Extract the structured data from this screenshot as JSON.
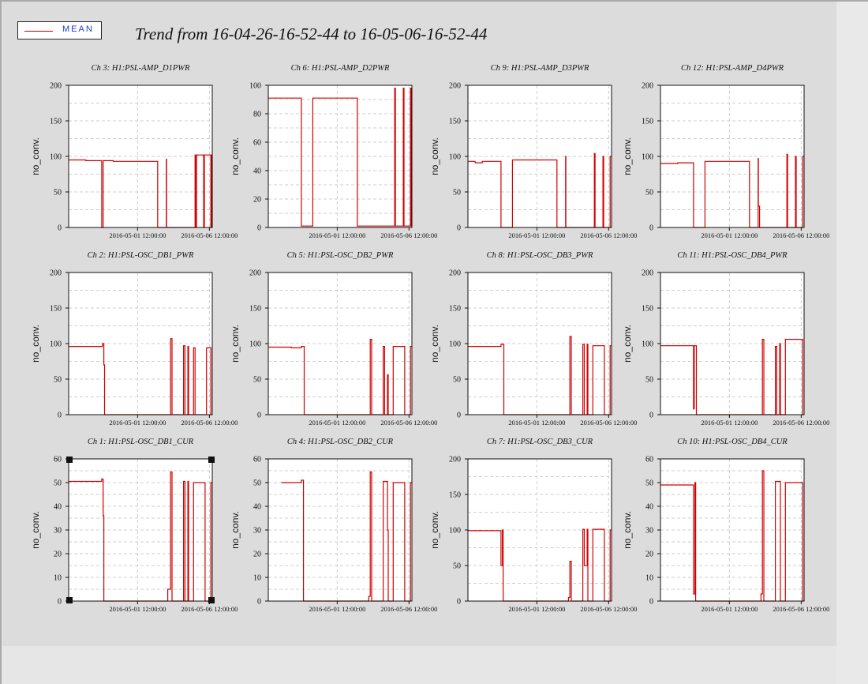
{
  "legend": {
    "label": "MEAN",
    "color": "#d10000"
  },
  "title": "Trend from 16-04-26-16-52-44 to 16-05-06-16-52-44",
  "chart_data": [
    {
      "type": "line",
      "title": "Ch 3: H1:PSL-AMP_D1PWR",
      "ylabel": "no_conv.",
      "ylim": [
        0,
        200
      ],
      "yticks": [
        0,
        50,
        100,
        150,
        200
      ],
      "xlim": [
        0,
        10
      ],
      "xticks": [
        {
          "x": 4.8,
          "label": "2016-05-01 12:00:00"
        },
        {
          "x": 9.8,
          "label": "2016-05-06 12:00:00"
        }
      ],
      "series": [
        {
          "x": [
            0,
            1.2,
            1.2,
            2.3,
            2.3,
            2.4,
            2.4,
            3.1,
            3.1,
            6.2,
            6.2,
            6.8,
            6.8,
            6.82,
            6.82,
            8.8,
            8.8,
            8.85,
            8.85,
            8.9,
            8.9,
            9.4,
            9.4,
            9.45,
            9.45,
            9.9,
            9.9,
            9.95,
            9.95,
            10
          ],
          "y": [
            95,
            95,
            94,
            94,
            0,
            0,
            94,
            94,
            93,
            93,
            0,
            0,
            96,
            96,
            0,
            0,
            102,
            102,
            0,
            0,
            102,
            102,
            0,
            0,
            102,
            102,
            0,
            0,
            102,
            102
          ]
        }
      ]
    },
    {
      "type": "line",
      "title": "Ch 6: H1:PSL-AMP_D2PWR",
      "ylabel": "no_conv.",
      "ylim": [
        0,
        100
      ],
      "yticks": [
        0,
        20,
        40,
        60,
        80,
        100
      ],
      "xlim": [
        0,
        10
      ],
      "xticks": [
        {
          "x": 4.8,
          "label": "2016-05-01 12:00:00"
        },
        {
          "x": 9.8,
          "label": "2016-05-06 12:00:00"
        }
      ],
      "series": [
        {
          "x": [
            0,
            2.3,
            2.3,
            3.1,
            3.1,
            6.2,
            6.2,
            8.8,
            8.8,
            8.85,
            8.85,
            9.4,
            9.4,
            9.45,
            9.45,
            9.9,
            9.9,
            9.95,
            9.95,
            10
          ],
          "y": [
            91,
            91,
            1,
            1,
            91,
            91,
            1,
            1,
            98,
            98,
            1,
            1,
            98,
            98,
            1,
            1,
            98,
            98,
            1,
            1
          ]
        }
      ]
    },
    {
      "type": "line",
      "title": "Ch 9: H1:PSL-AMP_D3PWR",
      "ylabel": "no_conv.",
      "ylim": [
        0,
        200
      ],
      "yticks": [
        0,
        50,
        100,
        150,
        200
      ],
      "xlim": [
        0,
        10
      ],
      "xticks": [
        {
          "x": 4.8,
          "label": "2016-05-01 12:00:00"
        },
        {
          "x": 9.8,
          "label": "2016-05-06 12:00:00"
        }
      ],
      "series": [
        {
          "x": [
            0,
            0.5,
            0.5,
            1.0,
            1.0,
            2.3,
            2.3,
            3.1,
            3.1,
            6.2,
            6.2,
            6.8,
            6.8,
            6.82,
            6.82,
            8.8,
            8.8,
            8.85,
            8.85,
            9.4,
            9.4,
            9.45,
            9.45,
            9.9,
            9.9,
            10
          ],
          "y": [
            93,
            93,
            91,
            91,
            93,
            93,
            0,
            0,
            95,
            95,
            0,
            0,
            100,
            100,
            0,
            0,
            104,
            104,
            0,
            0,
            100,
            100,
            0,
            0,
            100,
            100
          ]
        }
      ]
    },
    {
      "type": "line",
      "title": "Ch 12: H1:PSL-AMP_D4PWR",
      "ylabel": "no_conv.",
      "ylim": [
        0,
        200
      ],
      "yticks": [
        0,
        50,
        100,
        150,
        200
      ],
      "xlim": [
        0,
        10
      ],
      "xticks": [
        {
          "x": 4.8,
          "label": "2016-05-01 12:00:00"
        },
        {
          "x": 9.8,
          "label": "2016-05-06 12:00:00"
        }
      ],
      "series": [
        {
          "x": [
            0,
            1.2,
            1.2,
            2.3,
            2.3,
            3.1,
            3.1,
            6.2,
            6.2,
            6.8,
            6.8,
            6.82,
            6.82,
            6.9,
            6.9,
            8.8,
            8.8,
            8.85,
            8.85,
            9.4,
            9.4,
            9.45,
            9.45,
            9.9,
            9.9,
            10
          ],
          "y": [
            90,
            90,
            91,
            91,
            0,
            0,
            93,
            93,
            0,
            0,
            97,
            97,
            30,
            30,
            0,
            0,
            103,
            103,
            0,
            0,
            100,
            100,
            0,
            0,
            100,
            100
          ]
        }
      ]
    },
    {
      "type": "line",
      "title": "Ch 2: H1:PSL-OSC_DB1_PWR",
      "ylabel": "no_conv.",
      "ylim": [
        0,
        200
      ],
      "yticks": [
        0,
        50,
        100,
        150,
        200
      ],
      "xlim": [
        0,
        10
      ],
      "xticks": [
        {
          "x": 4.8,
          "label": "2016-05-01 12:00:00"
        },
        {
          "x": 9.8,
          "label": "2016-05-06 12:00:00"
        }
      ],
      "series": [
        {
          "x": [
            0,
            2.35,
            2.35,
            2.45,
            2.45,
            2.5,
            2.5,
            7.1,
            7.1,
            7.2,
            7.2,
            8.0,
            8.0,
            8.1,
            8.1,
            8.3,
            8.3,
            8.35,
            8.35,
            8.7,
            8.7,
            8.8,
            8.8,
            9.6,
            9.6,
            9.9,
            9.9,
            10
          ],
          "y": [
            96,
            96,
            100,
            100,
            70,
            70,
            0,
            0,
            107,
            107,
            0,
            0,
            97,
            97,
            0,
            0,
            96,
            96,
            0,
            0,
            94,
            94,
            0,
            0,
            94,
            94,
            0,
            0
          ]
        }
      ]
    },
    {
      "type": "line",
      "title": "Ch 5: H1:PSL-OSC_DB2_PWR",
      "ylabel": "no_conv.",
      "ylim": [
        0,
        200
      ],
      "yticks": [
        0,
        50,
        100,
        150,
        200
      ],
      "xlim": [
        0,
        10
      ],
      "xticks": [
        {
          "x": 4.8,
          "label": "2016-05-01 12:00:00"
        },
        {
          "x": 9.8,
          "label": "2016-05-06 12:00:00"
        }
      ],
      "series": [
        {
          "x": [
            0,
            1.6,
            1.6,
            2.3,
            2.3,
            2.5,
            2.5,
            7.1,
            7.1,
            7.2,
            7.2,
            8.0,
            8.0,
            8.1,
            8.1,
            8.3,
            8.3,
            8.35,
            8.35,
            8.7,
            8.7,
            9.5,
            9.5,
            9.9,
            9.9,
            10
          ],
          "y": [
            95,
            95,
            94,
            94,
            96,
            96,
            0,
            0,
            106,
            106,
            0,
            0,
            96,
            96,
            0,
            0,
            56,
            56,
            0,
            0,
            96,
            96,
            0,
            0,
            96,
            96
          ]
        }
      ]
    },
    {
      "type": "line",
      "title": "Ch 8: H1:PSL-OSC_DB3_PWR",
      "ylabel": "no_conv.",
      "ylim": [
        0,
        200
      ],
      "yticks": [
        0,
        50,
        100,
        150,
        200
      ],
      "xlim": [
        0,
        10
      ],
      "xticks": [
        {
          "x": 4.8,
          "label": "2016-05-01 12:00:00"
        },
        {
          "x": 9.8,
          "label": "2016-05-06 12:00:00"
        }
      ],
      "series": [
        {
          "x": [
            0,
            2.3,
            2.3,
            2.5,
            2.5,
            7.1,
            7.1,
            7.2,
            7.2,
            8.0,
            8.0,
            8.1,
            8.1,
            8.3,
            8.3,
            8.35,
            8.35,
            8.7,
            8.7,
            9.5,
            9.5,
            9.9,
            9.9,
            10
          ],
          "y": [
            96,
            96,
            99,
            99,
            0,
            0,
            110,
            110,
            0,
            0,
            99,
            99,
            0,
            0,
            99,
            99,
            0,
            0,
            97,
            97,
            0,
            0,
            97,
            97
          ]
        }
      ]
    },
    {
      "type": "line",
      "title": "Ch 11: H1:PSL-OSC_DB4_PWR",
      "ylabel": "no_conv.",
      "ylim": [
        0,
        200
      ],
      "yticks": [
        0,
        50,
        100,
        150,
        200
      ],
      "xlim": [
        0,
        10
      ],
      "xticks": [
        {
          "x": 4.8,
          "label": "2016-05-01 12:00:00"
        },
        {
          "x": 9.8,
          "label": "2016-05-06 12:00:00"
        }
      ],
      "series": [
        {
          "x": [
            0,
            2.3,
            2.3,
            2.35,
            2.35,
            2.5,
            2.5,
            7.1,
            7.1,
            7.2,
            7.2,
            8.0,
            8.0,
            8.1,
            8.1,
            8.3,
            8.3,
            8.35,
            8.35,
            8.7,
            8.7,
            9.9,
            9.9,
            10
          ],
          "y": [
            97,
            97,
            8,
            8,
            97,
            97,
            0,
            0,
            106,
            106,
            0,
            0,
            96,
            96,
            0,
            0,
            100,
            100,
            0,
            0,
            106,
            106,
            0,
            0
          ]
        }
      ]
    },
    {
      "type": "line",
      "title": "Ch 1: H1:PSL-OSC_DB1_CUR",
      "ylabel": "no_conv.",
      "ylim": [
        0,
        60
      ],
      "yticks": [
        0,
        10,
        20,
        30,
        40,
        50,
        60
      ],
      "xlim": [
        0,
        10
      ],
      "xticks": [
        {
          "x": 4.8,
          "label": "2016-05-01 12:00:00"
        },
        {
          "x": 9.8,
          "label": "2016-05-06 12:00:00"
        }
      ],
      "series": [
        {
          "x": [
            0,
            2.3,
            2.3,
            2.4,
            2.4,
            2.45,
            2.45,
            6.9,
            6.9,
            7.1,
            7.1,
            7.2,
            7.2,
            8.0,
            8.0,
            8.1,
            8.1,
            8.3,
            8.3,
            8.35,
            8.35,
            8.7,
            8.7,
            9.5,
            9.5,
            9.9,
            9.9,
            10
          ],
          "y": [
            50.5,
            50.5,
            51.5,
            51.5,
            36,
            36,
            0,
            0,
            5,
            5,
            54.5,
            54.5,
            0,
            0,
            50.5,
            50.5,
            0,
            0,
            50.5,
            50.5,
            0,
            0,
            50,
            50,
            0,
            0,
            50,
            50
          ]
        }
      ]
    },
    {
      "type": "line",
      "title": "Ch 4: H1:PSL-OSC_DB2_CUR",
      "ylabel": "no_conv.",
      "ylim": [
        0,
        60
      ],
      "yticks": [
        0,
        10,
        20,
        30,
        40,
        50,
        60
      ],
      "xlim": [
        0,
        10
      ],
      "xticks": [
        {
          "x": 4.8,
          "label": "2016-05-01 12:00:00"
        },
        {
          "x": 9.8,
          "label": "2016-05-06 12:00:00"
        }
      ],
      "series": [
        {
          "x": [
            0.9,
            2.3,
            2.3,
            2.45,
            2.45,
            7.0,
            7.0,
            7.1,
            7.1,
            7.2,
            7.2,
            8.0,
            8.0,
            8.3,
            8.3,
            8.35,
            8.35,
            8.7,
            8.7,
            9.5,
            9.5,
            9.9,
            9.9,
            10
          ],
          "y": [
            50,
            50,
            51,
            51,
            0,
            0,
            2,
            2,
            54.5,
            54.5,
            0,
            0,
            50.5,
            50.5,
            30,
            30,
            0,
            0,
            50,
            50,
            0,
            0,
            50,
            50
          ]
        }
      ]
    },
    {
      "type": "line",
      "title": "Ch 7: H1:PSL-OSC_DB3_CUR",
      "ylabel": "no_conv.",
      "ylim": [
        0,
        200
      ],
      "yticks": [
        0,
        50,
        100,
        150,
        200
      ],
      "xlim": [
        0,
        10
      ],
      "xticks": [
        {
          "x": 4.8,
          "label": "2016-05-01 12:00:00"
        },
        {
          "x": 9.8,
          "label": "2016-05-06 12:00:00"
        }
      ],
      "series": [
        {
          "x": [
            0,
            2.3,
            2.3,
            2.4,
            2.4,
            2.45,
            2.45,
            7.0,
            7.0,
            7.1,
            7.1,
            7.2,
            7.2,
            8.0,
            8.0,
            8.1,
            8.1,
            8.3,
            8.3,
            8.35,
            8.35,
            8.7,
            8.7,
            9.5,
            9.5,
            9.9,
            9.9,
            10
          ],
          "y": [
            99,
            99,
            50,
            50,
            100,
            100,
            0,
            0,
            5,
            5,
            56,
            56,
            0,
            0,
            101,
            101,
            50,
            50,
            101,
            101,
            0,
            0,
            101,
            101,
            0,
            0,
            100,
            100
          ]
        }
      ]
    },
    {
      "type": "line",
      "title": "Ch 10: H1:PSL-OSC_DB4_CUR",
      "ylabel": "no_conv.",
      "ylim": [
        0,
        60
      ],
      "yticks": [
        0,
        10,
        20,
        30,
        40,
        50,
        60
      ],
      "xlim": [
        0,
        10
      ],
      "xticks": [
        {
          "x": 4.8,
          "label": "2016-05-01 12:00:00"
        },
        {
          "x": 9.8,
          "label": "2016-05-06 12:00:00"
        }
      ],
      "series": [
        {
          "x": [
            0,
            2.3,
            2.3,
            2.4,
            2.4,
            2.45,
            2.45,
            7.0,
            7.0,
            7.1,
            7.1,
            7.2,
            7.2,
            8.0,
            8.0,
            8.3,
            8.3,
            8.35,
            8.35,
            8.7,
            8.7,
            9.9,
            9.9,
            10
          ],
          "y": [
            49,
            49,
            3,
            3,
            50,
            50,
            0,
            0,
            3,
            3,
            55,
            55,
            0,
            0,
            50.5,
            50.5,
            50.5,
            50.5,
            0,
            0,
            50,
            50,
            0,
            0
          ]
        }
      ]
    }
  ]
}
